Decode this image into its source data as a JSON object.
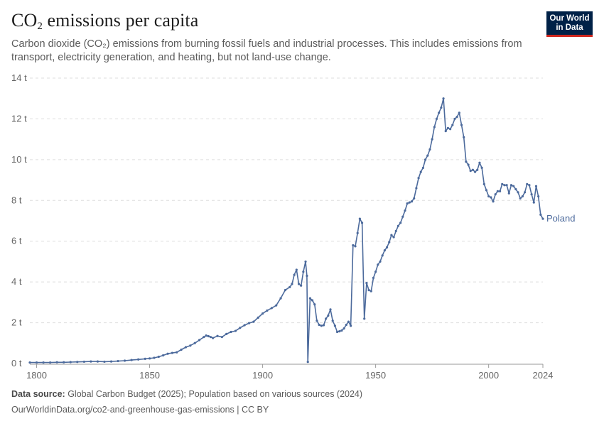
{
  "header": {
    "title_main": "CO",
    "title_sub": "2",
    "title_rest": " emissions per capita",
    "subtitle": "Carbon dioxide (CO₂) emissions from burning fossil fuels and industrial processes. This includes emissions from transport, electricity generation, and heating, but not land-use change."
  },
  "logo": {
    "line1": "Our World",
    "line2": "in Data",
    "bg_color": "#002147",
    "accent_color": "#ce261e"
  },
  "footer": {
    "source_label": "Data source:",
    "source_text": " Global Carbon Budget (2025); Population based on various sources (2024)",
    "url_text": "OurWorldinData.org/co2-and-greenhouse-gas-emissions | CC BY"
  },
  "chart_data": {
    "type": "line",
    "title": "CO₂ emissions per capita",
    "xlabel": "",
    "ylabel": "",
    "xlim": [
      1797,
      2024
    ],
    "ylim": [
      0,
      14
    ],
    "grid": "horizontal dashed",
    "x_ticks": [
      1800,
      1850,
      1900,
      1950,
      2000,
      2024
    ],
    "x_tick_labels": [
      "1800",
      "1850",
      "1900",
      "1950",
      "2000",
      "2024"
    ],
    "y_ticks": [
      0,
      2,
      4,
      6,
      8,
      10,
      12,
      14
    ],
    "y_tick_labels": [
      "0 t",
      "2 t",
      "4 t",
      "6 t",
      "8 t",
      "10 t",
      "12 t",
      "14 t"
    ],
    "series": [
      {
        "name": "Poland",
        "color": "#4c6a9c",
        "points": [
          [
            1797,
            0.05
          ],
          [
            1800,
            0.05
          ],
          [
            1803,
            0.05
          ],
          [
            1806,
            0.05
          ],
          [
            1809,
            0.06
          ],
          [
            1812,
            0.06
          ],
          [
            1815,
            0.07
          ],
          [
            1818,
            0.08
          ],
          [
            1821,
            0.09
          ],
          [
            1824,
            0.1
          ],
          [
            1827,
            0.1
          ],
          [
            1830,
            0.09
          ],
          [
            1833,
            0.1
          ],
          [
            1836,
            0.12
          ],
          [
            1839,
            0.14
          ],
          [
            1842,
            0.17
          ],
          [
            1845,
            0.2
          ],
          [
            1848,
            0.23
          ],
          [
            1850,
            0.25
          ],
          [
            1852,
            0.28
          ],
          [
            1854,
            0.33
          ],
          [
            1856,
            0.4
          ],
          [
            1858,
            0.48
          ],
          [
            1860,
            0.52
          ],
          [
            1862,
            0.55
          ],
          [
            1864,
            0.68
          ],
          [
            1866,
            0.8
          ],
          [
            1868,
            0.88
          ],
          [
            1870,
            1.0
          ],
          [
            1872,
            1.15
          ],
          [
            1874,
            1.3
          ],
          [
            1875,
            1.37
          ],
          [
            1876,
            1.34
          ],
          [
            1877,
            1.3
          ],
          [
            1878,
            1.25
          ],
          [
            1880,
            1.35
          ],
          [
            1882,
            1.3
          ],
          [
            1884,
            1.45
          ],
          [
            1886,
            1.55
          ],
          [
            1888,
            1.6
          ],
          [
            1890,
            1.75
          ],
          [
            1892,
            1.88
          ],
          [
            1894,
            1.98
          ],
          [
            1896,
            2.05
          ],
          [
            1898,
            2.25
          ],
          [
            1900,
            2.45
          ],
          [
            1902,
            2.6
          ],
          [
            1904,
            2.72
          ],
          [
            1906,
            2.85
          ],
          [
            1908,
            3.2
          ],
          [
            1910,
            3.6
          ],
          [
            1912,
            3.75
          ],
          [
            1913,
            3.9
          ],
          [
            1914,
            4.35
          ],
          [
            1915,
            4.6
          ],
          [
            1916,
            3.9
          ],
          [
            1917,
            3.82
          ],
          [
            1918,
            4.5
          ],
          [
            1919,
            5.0
          ],
          [
            1919.6,
            4.3
          ],
          [
            1920,
            0.08
          ],
          [
            1921,
            3.2
          ],
          [
            1922,
            3.1
          ],
          [
            1923,
            2.9
          ],
          [
            1924,
            2.1
          ],
          [
            1925,
            1.9
          ],
          [
            1926,
            1.85
          ],
          [
            1927,
            1.88
          ],
          [
            1928,
            2.2
          ],
          [
            1929,
            2.35
          ],
          [
            1930,
            2.65
          ],
          [
            1931,
            2.1
          ],
          [
            1932,
            1.85
          ],
          [
            1933,
            1.55
          ],
          [
            1934,
            1.58
          ],
          [
            1935,
            1.62
          ],
          [
            1936,
            1.72
          ],
          [
            1937,
            1.9
          ],
          [
            1938,
            2.05
          ],
          [
            1939,
            1.85
          ],
          [
            1940,
            5.8
          ],
          [
            1941,
            5.75
          ],
          [
            1942,
            6.4
          ],
          [
            1943,
            7.1
          ],
          [
            1944,
            6.9
          ],
          [
            1945,
            2.2
          ],
          [
            1946,
            3.95
          ],
          [
            1947,
            3.6
          ],
          [
            1948,
            3.55
          ],
          [
            1949,
            4.2
          ],
          [
            1950,
            4.5
          ],
          [
            1951,
            4.85
          ],
          [
            1952,
            5.0
          ],
          [
            1953,
            5.3
          ],
          [
            1954,
            5.55
          ],
          [
            1955,
            5.7
          ],
          [
            1956,
            5.95
          ],
          [
            1957,
            6.3
          ],
          [
            1958,
            6.2
          ],
          [
            1959,
            6.5
          ],
          [
            1960,
            6.75
          ],
          [
            1961,
            6.9
          ],
          [
            1962,
            7.2
          ],
          [
            1963,
            7.5
          ],
          [
            1964,
            7.85
          ],
          [
            1965,
            7.9
          ],
          [
            1966,
            7.95
          ],
          [
            1967,
            8.1
          ],
          [
            1968,
            8.6
          ],
          [
            1969,
            9.1
          ],
          [
            1970,
            9.4
          ],
          [
            1971,
            9.6
          ],
          [
            1972,
            10.0
          ],
          [
            1973,
            10.2
          ],
          [
            1974,
            10.5
          ],
          [
            1975,
            11.0
          ],
          [
            1976,
            11.6
          ],
          [
            1977,
            12.0
          ],
          [
            1978,
            12.3
          ],
          [
            1979,
            12.55
          ],
          [
            1980,
            13.0
          ],
          [
            1981,
            11.4
          ],
          [
            1982,
            11.55
          ],
          [
            1983,
            11.5
          ],
          [
            1984,
            11.7
          ],
          [
            1985,
            12.0
          ],
          [
            1986,
            12.1
          ],
          [
            1987,
            12.3
          ],
          [
            1988,
            11.7
          ],
          [
            1989,
            11.1
          ],
          [
            1990,
            9.9
          ],
          [
            1991,
            9.75
          ],
          [
            1992,
            9.45
          ],
          [
            1993,
            9.5
          ],
          [
            1994,
            9.4
          ],
          [
            1995,
            9.5
          ],
          [
            1996,
            9.85
          ],
          [
            1997,
            9.6
          ],
          [
            1998,
            8.8
          ],
          [
            1999,
            8.5
          ],
          [
            2000,
            8.2
          ],
          [
            2001,
            8.15
          ],
          [
            2002,
            7.95
          ],
          [
            2003,
            8.3
          ],
          [
            2004,
            8.45
          ],
          [
            2005,
            8.45
          ],
          [
            2006,
            8.8
          ],
          [
            2007,
            8.75
          ],
          [
            2008,
            8.75
          ],
          [
            2009,
            8.35
          ],
          [
            2010,
            8.75
          ],
          [
            2011,
            8.7
          ],
          [
            2012,
            8.55
          ],
          [
            2013,
            8.4
          ],
          [
            2014,
            8.1
          ],
          [
            2015,
            8.2
          ],
          [
            2016,
            8.4
          ],
          [
            2017,
            8.8
          ],
          [
            2018,
            8.75
          ],
          [
            2019,
            8.3
          ],
          [
            2020,
            7.9
          ],
          [
            2021,
            8.7
          ],
          [
            2022,
            8.2
          ],
          [
            2023,
            7.3
          ],
          [
            2024,
            7.1
          ]
        ]
      }
    ]
  }
}
